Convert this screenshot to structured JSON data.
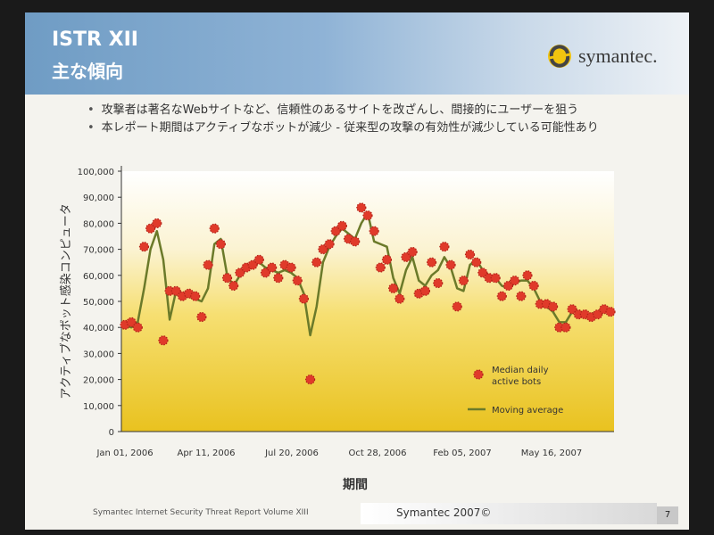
{
  "slide": {
    "title_line1": "ISTR XII",
    "title_line2": "主な傾向",
    "logo_text": "symantec.",
    "bullets": [
      "攻撃者は著名なWebサイトなど、信頼性のあるサイトを改ざんし、間接的にユーザーを狙う",
      "本レポート期間はアクティブなボットが減少 - 従来型の攻撃の有効性が減少している可能性あり"
    ],
    "footer_left": "Symantec Internet Security Threat Report Volume XIII",
    "footer_center": "Symantec 2007©",
    "page_number": "7"
  },
  "chart_data": {
    "type": "line",
    "xlabel": "期間",
    "ylabel": "アクティブなボット感染コンピュータ",
    "ylim": [
      0,
      100000
    ],
    "yticks": [
      "0",
      "10,000",
      "20,000",
      "30,000",
      "40,000",
      "50,000",
      "60,000",
      "70,000",
      "80,000",
      "90,000",
      "100,000"
    ],
    "xticks": [
      "Jan 01, 2006",
      "Apr 11, 2006",
      "Jul 20, 2006",
      "Oct 28, 2006",
      "Feb 05, 2007",
      "May 16, 2007"
    ],
    "series": [
      {
        "name": "Median daily active bots",
        "kind": "scatter",
        "color": "#e03a2a",
        "values": [
          41000,
          42000,
          40000,
          71000,
          78000,
          80000,
          35000,
          54000,
          54000,
          52000,
          53000,
          52000,
          44000,
          64000,
          78000,
          72000,
          59000,
          56000,
          61000,
          63000,
          64000,
          66000,
          61000,
          63000,
          59000,
          64000,
          63000,
          58000,
          51000,
          20000,
          65000,
          70000,
          72000,
          77000,
          79000,
          74000,
          73000,
          86000,
          83000,
          77000,
          63000,
          66000,
          55000,
          51000,
          67000,
          69000,
          53000,
          54000,
          65000,
          57000,
          71000,
          64000,
          48000,
          58000,
          68000,
          65000,
          61000,
          59000,
          59000,
          52000,
          56000,
          58000,
          52000,
          60000,
          56000,
          49000,
          49000,
          48000,
          40000,
          40000,
          47000,
          45000,
          45000,
          44000,
          45000,
          47000,
          46000
        ]
      },
      {
        "name": "Moving average",
        "kind": "line",
        "color": "#6b7a2a",
        "values": [
          41000,
          40000,
          42000,
          55000,
          70000,
          77000,
          66000,
          43000,
          54000,
          53000,
          52000,
          51000,
          50000,
          55000,
          72000,
          74000,
          60000,
          56000,
          60000,
          63000,
          64000,
          65000,
          63000,
          62000,
          61000,
          62000,
          61000,
          59000,
          53000,
          37000,
          48000,
          65000,
          71000,
          75000,
          78000,
          76000,
          74000,
          80000,
          84000,
          73000,
          72000,
          71000,
          59000,
          53000,
          62000,
          67000,
          58000,
          56000,
          60000,
          62000,
          67000,
          63000,
          55000,
          54000,
          64000,
          66000,
          62000,
          60000,
          59000,
          56000,
          55000,
          57000,
          58000,
          58000,
          55000,
          50000,
          48000,
          46000,
          42000,
          42000,
          46000,
          46000,
          45000,
          45000,
          46000,
          46000,
          46000
        ]
      }
    ],
    "legend": [
      "Median daily active bots",
      "Moving average"
    ],
    "legend_position": "inside-lower-right",
    "grid": false
  }
}
